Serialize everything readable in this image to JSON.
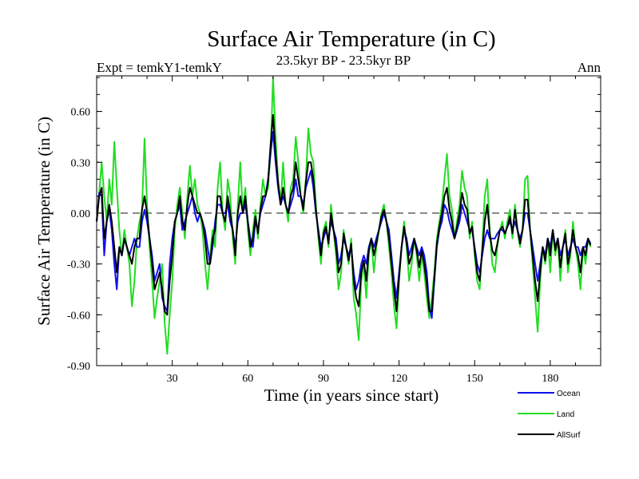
{
  "chart_data": {
    "type": "line",
    "title": "Surface Air Temperature (in C)",
    "left_label": "Expt = temkY1-temkY",
    "center_label": "23.5kyr BP - 23.5kyr BP",
    "right_label": "Ann",
    "xlabel": "Time (in years since start)",
    "ylabel": "Surface Air Temperature (in C)",
    "xlim": [
      0,
      200
    ],
    "ylim": [
      -0.9,
      0.81
    ],
    "xticks": [
      30,
      60,
      90,
      120,
      150,
      180
    ],
    "yticks": [
      0.6,
      0.3,
      0.0,
      -0.3,
      -0.6,
      -0.9
    ],
    "ytick_labels": [
      "0.60",
      "0.30",
      "0.00",
      "-0.30",
      "-0.60",
      "-0.90"
    ],
    "reference_line": 0.0,
    "series": [
      {
        "name": "Land",
        "color": "#22dd22",
        "values": [
          -0.05,
          0.12,
          0.3,
          0.1,
          -0.05,
          0.2,
          0.05,
          0.42,
          0.15,
          -0.1,
          -0.25,
          -0.1,
          -0.2,
          -0.3,
          -0.55,
          -0.4,
          -0.15,
          -0.05,
          0.02,
          0.44,
          0.05,
          -0.2,
          -0.4,
          -0.62,
          -0.5,
          -0.4,
          -0.3,
          -0.65,
          -0.83,
          -0.6,
          -0.4,
          -0.1,
          0.05,
          0.15,
          0.0,
          -0.15,
          0.1,
          0.28,
          0.1,
          0.2,
          0.05,
          0.0,
          -0.1,
          -0.3,
          -0.45,
          -0.25,
          -0.1,
          -0.2,
          0.15,
          0.3,
          0.0,
          -0.1,
          0.2,
          0.1,
          -0.15,
          -0.3,
          0.05,
          0.3,
          0.0,
          0.15,
          -0.1,
          -0.25,
          -0.1,
          0.02,
          -0.15,
          0.05,
          0.2,
          0.1,
          0.15,
          0.35,
          0.8,
          0.45,
          0.2,
          0.05,
          0.3,
          0.05,
          -0.05,
          0.15,
          0.2,
          0.45,
          0.3,
          0.1,
          0.0,
          0.2,
          0.5,
          0.35,
          0.3,
          0.05,
          -0.15,
          -0.3,
          -0.1,
          -0.05,
          -0.2,
          0.05,
          -0.1,
          -0.25,
          -0.45,
          -0.35,
          -0.1,
          -0.2,
          -0.3,
          -0.15,
          -0.5,
          -0.6,
          -0.75,
          -0.4,
          -0.3,
          -0.5,
          -0.25,
          -0.15,
          -0.35,
          -0.2,
          -0.1,
          0.0,
          0.05,
          -0.05,
          -0.2,
          -0.35,
          -0.55,
          -0.68,
          -0.4,
          -0.2,
          -0.05,
          -0.2,
          -0.4,
          -0.3,
          -0.15,
          -0.25,
          -0.4,
          -0.25,
          -0.35,
          -0.5,
          -0.62,
          -0.5,
          -0.35,
          -0.15,
          -0.05,
          0.05,
          0.2,
          0.35,
          0.1,
          0.02,
          -0.15,
          -0.05,
          0.05,
          0.25,
          0.15,
          0.1,
          -0.15,
          -0.05,
          -0.25,
          -0.4,
          -0.45,
          -0.2,
          0.1,
          0.2,
          -0.1,
          -0.3,
          -0.35,
          -0.2,
          -0.1,
          -0.05,
          -0.15,
          -0.05,
          0.02,
          -0.15,
          0.05,
          -0.1,
          -0.2,
          -0.1,
          0.2,
          0.22,
          -0.1,
          -0.3,
          -0.5,
          -0.7,
          -0.4,
          -0.2,
          -0.3,
          -0.15,
          -0.35,
          -0.1,
          -0.25,
          -0.15,
          -0.4,
          -0.2,
          -0.1,
          -0.35,
          -0.25,
          -0.05,
          -0.2,
          -0.3,
          -0.45,
          -0.2,
          -0.3,
          -0.15,
          -0.2
        ]
      },
      {
        "name": "Ocean",
        "color": "#1010ee",
        "values": [
          -0.05,
          0.12,
          0.1,
          -0.25,
          -0.05,
          0.02,
          -0.1,
          -0.3,
          -0.45,
          -0.2,
          -0.25,
          -0.15,
          -0.2,
          -0.25,
          -0.2,
          -0.15,
          -0.2,
          -0.2,
          -0.05,
          0.02,
          -0.05,
          -0.15,
          -0.25,
          -0.4,
          -0.35,
          -0.3,
          -0.5,
          -0.55,
          -0.58,
          -0.3,
          -0.15,
          -0.05,
          0.0,
          0.05,
          -0.1,
          -0.05,
          0.0,
          0.05,
          0.1,
          0.0,
          -0.05,
          0.0,
          -0.05,
          -0.1,
          -0.2,
          -0.3,
          -0.2,
          -0.05,
          0.05,
          0.05,
          0.0,
          0.0,
          0.05,
          -0.05,
          -0.1,
          -0.2,
          -0.05,
          0.0,
          0.0,
          0.05,
          -0.05,
          -0.15,
          -0.2,
          -0.05,
          -0.1,
          0.0,
          0.05,
          0.1,
          0.2,
          0.35,
          0.48,
          0.3,
          0.15,
          0.05,
          0.1,
          0.05,
          0.0,
          0.05,
          0.1,
          0.2,
          0.1,
          0.1,
          0.05,
          0.15,
          0.2,
          0.25,
          0.15,
          0.0,
          -0.1,
          -0.2,
          -0.15,
          -0.1,
          -0.15,
          -0.05,
          -0.1,
          -0.15,
          -0.3,
          -0.25,
          -0.15,
          -0.2,
          -0.25,
          -0.2,
          -0.35,
          -0.45,
          -0.4,
          -0.3,
          -0.25,
          -0.3,
          -0.2,
          -0.15,
          -0.2,
          -0.15,
          -0.1,
          -0.05,
          0.0,
          -0.05,
          -0.1,
          -0.25,
          -0.4,
          -0.5,
          -0.35,
          -0.2,
          -0.1,
          -0.15,
          -0.25,
          -0.2,
          -0.15,
          -0.2,
          -0.25,
          -0.2,
          -0.25,
          -0.35,
          -0.55,
          -0.62,
          -0.4,
          -0.2,
          -0.1,
          -0.05,
          0.05,
          0.02,
          -0.05,
          -0.1,
          -0.15,
          -0.1,
          -0.05,
          0.05,
          0.0,
          -0.05,
          -0.1,
          -0.1,
          -0.2,
          -0.3,
          -0.35,
          -0.25,
          -0.15,
          -0.1,
          -0.15,
          -0.15,
          -0.15,
          -0.12,
          -0.1,
          -0.1,
          -0.12,
          -0.08,
          -0.05,
          -0.1,
          -0.05,
          -0.1,
          -0.15,
          -0.1,
          0.0,
          0.0,
          -0.1,
          -0.2,
          -0.3,
          -0.4,
          -0.3,
          -0.2,
          -0.25,
          -0.15,
          -0.2,
          -0.1,
          -0.2,
          -0.15,
          -0.25,
          -0.2,
          -0.15,
          -0.25,
          -0.2,
          -0.15,
          -0.2,
          -0.2,
          -0.25,
          -0.2,
          -0.2,
          -0.15,
          -0.18
        ]
      },
      {
        "name": "AllSurf",
        "color": "#000000",
        "values": [
          -0.05,
          0.1,
          0.15,
          -0.15,
          -0.05,
          0.05,
          -0.05,
          -0.2,
          -0.35,
          -0.2,
          -0.25,
          -0.15,
          -0.2,
          -0.25,
          -0.3,
          -0.2,
          -0.15,
          -0.15,
          0.02,
          0.1,
          0.0,
          -0.15,
          -0.3,
          -0.45,
          -0.4,
          -0.35,
          -0.45,
          -0.58,
          -0.6,
          -0.4,
          -0.25,
          -0.05,
          0.0,
          0.1,
          -0.05,
          -0.1,
          0.05,
          0.15,
          0.1,
          0.05,
          0.0,
          0.0,
          -0.05,
          -0.15,
          -0.3,
          -0.3,
          -0.15,
          -0.1,
          0.1,
          0.1,
          0.0,
          -0.05,
          0.1,
          0.0,
          -0.1,
          -0.25,
          0.0,
          0.1,
          0.0,
          0.1,
          -0.05,
          -0.2,
          -0.15,
          -0.02,
          -0.12,
          0.02,
          0.1,
          0.1,
          0.18,
          0.4,
          0.58,
          0.35,
          0.18,
          0.05,
          0.15,
          0.05,
          0.0,
          0.1,
          0.15,
          0.3,
          0.2,
          0.1,
          0.02,
          0.18,
          0.3,
          0.3,
          0.2,
          0.02,
          -0.12,
          -0.25,
          -0.12,
          -0.08,
          -0.18,
          0.0,
          -0.1,
          -0.2,
          -0.35,
          -0.3,
          -0.12,
          -0.2,
          -0.28,
          -0.18,
          -0.4,
          -0.5,
          -0.55,
          -0.35,
          -0.28,
          -0.4,
          -0.22,
          -0.15,
          -0.25,
          -0.18,
          -0.1,
          -0.02,
          0.02,
          -0.05,
          -0.15,
          -0.3,
          -0.45,
          -0.58,
          -0.38,
          -0.2,
          -0.08,
          -0.18,
          -0.3,
          -0.25,
          -0.15,
          -0.22,
          -0.32,
          -0.22,
          -0.3,
          -0.42,
          -0.58,
          -0.58,
          -0.38,
          -0.18,
          -0.08,
          0.0,
          0.1,
          0.15,
          0.02,
          -0.05,
          -0.15,
          -0.08,
          0.0,
          0.12,
          0.05,
          0.02,
          -0.12,
          -0.08,
          -0.22,
          -0.35,
          -0.4,
          -0.22,
          -0.05,
          0.05,
          -0.12,
          -0.22,
          -0.25,
          -0.18,
          -0.1,
          -0.08,
          -0.12,
          -0.08,
          -0.02,
          -0.12,
          0.02,
          -0.1,
          -0.18,
          -0.1,
          0.08,
          0.08,
          -0.1,
          -0.25,
          -0.4,
          -0.52,
          -0.35,
          -0.2,
          -0.28,
          -0.15,
          -0.25,
          -0.1,
          -0.22,
          -0.15,
          -0.32,
          -0.2,
          -0.12,
          -0.3,
          -0.22,
          -0.1,
          -0.2,
          -0.25,
          -0.35,
          -0.2,
          -0.25,
          -0.15,
          -0.19
        ]
      }
    ],
    "legend_position": "bottom-right"
  }
}
